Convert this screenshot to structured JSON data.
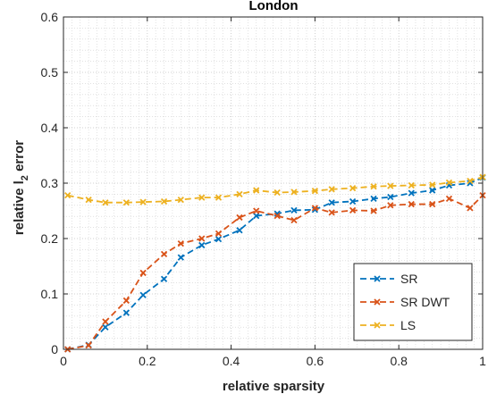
{
  "chart_data": {
    "type": "line",
    "title": "London",
    "xlabel": "relative sparsity",
    "ylabel": {
      "prefix": "relative l",
      "subscript": "2",
      "suffix": " error"
    },
    "xlim": [
      0,
      1
    ],
    "ylim": [
      0,
      0.6
    ],
    "xticks": [
      "0",
      "0.2",
      "0.4",
      "0.6",
      "0.8",
      "1"
    ],
    "yticks": [
      "0",
      "0.1",
      "0.2",
      "0.3",
      "0.4",
      "0.5",
      "0.6"
    ],
    "grid": true,
    "minor_grid": true,
    "legend_position": "bottom-right",
    "series": [
      {
        "name": "SR",
        "color": "#0072BD",
        "x": [
          0.01,
          0.06,
          0.1,
          0.15,
          0.19,
          0.24,
          0.28,
          0.33,
          0.37,
          0.42,
          0.46,
          0.51,
          0.55,
          0.6,
          0.64,
          0.69,
          0.74,
          0.78,
          0.83,
          0.88,
          0.92,
          0.97,
          1.0
        ],
        "y": [
          0.0,
          0.008,
          0.04,
          0.066,
          0.098,
          0.127,
          0.166,
          0.188,
          0.199,
          0.215,
          0.241,
          0.245,
          0.251,
          0.252,
          0.265,
          0.267,
          0.272,
          0.275,
          0.282,
          0.287,
          0.296,
          0.3,
          0.31
        ]
      },
      {
        "name": "SR DWT",
        "color": "#D95319",
        "x": [
          0.01,
          0.06,
          0.1,
          0.15,
          0.19,
          0.24,
          0.28,
          0.33,
          0.37,
          0.42,
          0.46,
          0.51,
          0.55,
          0.6,
          0.64,
          0.69,
          0.74,
          0.78,
          0.83,
          0.88,
          0.92,
          0.97,
          1.0
        ],
        "y": [
          0.0,
          0.007,
          0.05,
          0.088,
          0.138,
          0.172,
          0.191,
          0.2,
          0.209,
          0.238,
          0.25,
          0.241,
          0.233,
          0.255,
          0.247,
          0.251,
          0.25,
          0.26,
          0.262,
          0.262,
          0.272,
          0.255,
          0.278
        ]
      },
      {
        "name": "LS",
        "color": "#EDB120",
        "x": [
          0.01,
          0.06,
          0.1,
          0.15,
          0.19,
          0.24,
          0.28,
          0.33,
          0.37,
          0.42,
          0.46,
          0.51,
          0.55,
          0.6,
          0.64,
          0.69,
          0.74,
          0.78,
          0.83,
          0.88,
          0.92,
          0.97,
          1.0
        ],
        "y": [
          0.278,
          0.27,
          0.265,
          0.265,
          0.266,
          0.267,
          0.27,
          0.274,
          0.274,
          0.28,
          0.287,
          0.283,
          0.284,
          0.286,
          0.289,
          0.291,
          0.294,
          0.295,
          0.296,
          0.297,
          0.301,
          0.304,
          0.311
        ]
      }
    ]
  }
}
